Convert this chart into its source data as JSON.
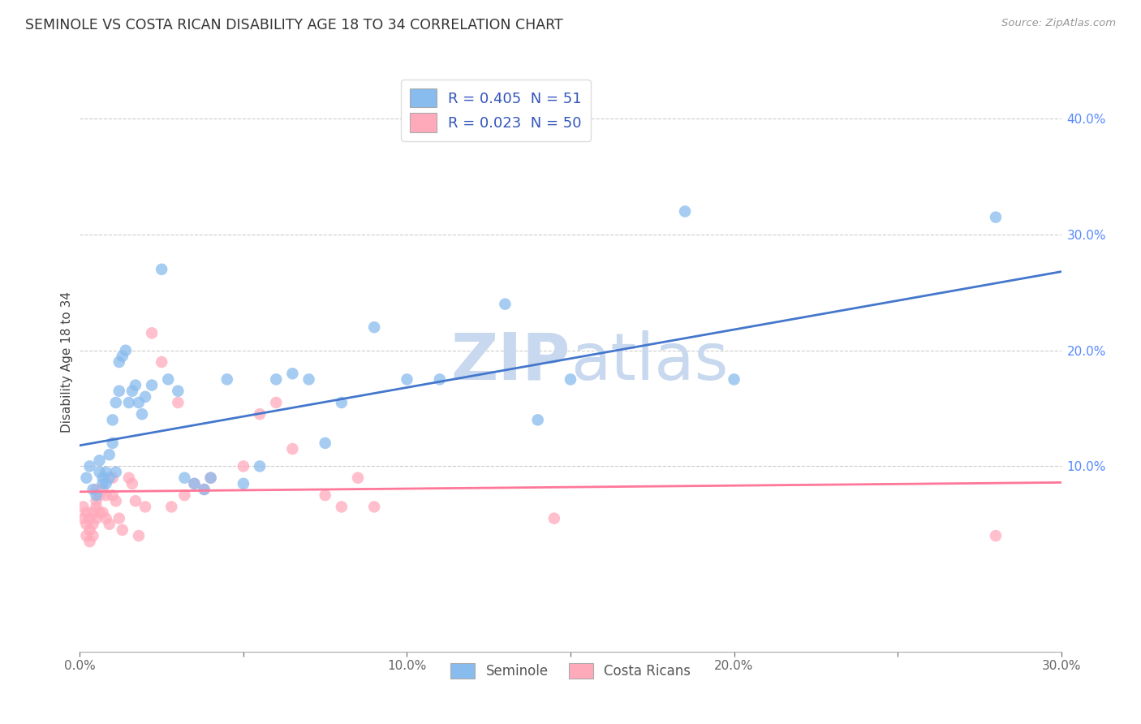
{
  "title": "SEMINOLE VS COSTA RICAN DISABILITY AGE 18 TO 34 CORRELATION CHART",
  "source": "Source: ZipAtlas.com",
  "ylabel": "Disability Age 18 to 34",
  "xmin": 0.0,
  "xmax": 0.3,
  "ymin": -0.06,
  "ymax": 0.44,
  "blue_R": 0.405,
  "blue_N": 51,
  "pink_R": 0.023,
  "pink_N": 50,
  "blue_color": "#88BBEE",
  "pink_color": "#FFAABB",
  "blue_line_color": "#4477CC",
  "pink_line_color": "#FF7799",
  "watermark_color": "#C8D8EE",
  "legend_label_blue": "Seminole",
  "legend_label_pink": "Costa Ricans",
  "blue_scatter_x": [
    0.002,
    0.003,
    0.004,
    0.005,
    0.006,
    0.006,
    0.007,
    0.007,
    0.008,
    0.008,
    0.009,
    0.009,
    0.01,
    0.01,
    0.011,
    0.011,
    0.012,
    0.012,
    0.013,
    0.014,
    0.015,
    0.016,
    0.017,
    0.018,
    0.019,
    0.02,
    0.022,
    0.025,
    0.027,
    0.03,
    0.032,
    0.035,
    0.038,
    0.04,
    0.045,
    0.05,
    0.055,
    0.06,
    0.065,
    0.07,
    0.075,
    0.08,
    0.09,
    0.1,
    0.11,
    0.13,
    0.14,
    0.15,
    0.185,
    0.2,
    0.28
  ],
  "blue_scatter_y": [
    0.09,
    0.1,
    0.08,
    0.075,
    0.095,
    0.105,
    0.09,
    0.085,
    0.095,
    0.085,
    0.11,
    0.09,
    0.14,
    0.12,
    0.095,
    0.155,
    0.165,
    0.19,
    0.195,
    0.2,
    0.155,
    0.165,
    0.17,
    0.155,
    0.145,
    0.16,
    0.17,
    0.27,
    0.175,
    0.165,
    0.09,
    0.085,
    0.08,
    0.09,
    0.175,
    0.085,
    0.1,
    0.175,
    0.18,
    0.175,
    0.12,
    0.155,
    0.22,
    0.175,
    0.175,
    0.24,
    0.14,
    0.175,
    0.32,
    0.175,
    0.315
  ],
  "pink_scatter_x": [
    0.001,
    0.001,
    0.002,
    0.002,
    0.002,
    0.003,
    0.003,
    0.003,
    0.004,
    0.004,
    0.004,
    0.005,
    0.005,
    0.005,
    0.005,
    0.006,
    0.006,
    0.007,
    0.007,
    0.008,
    0.008,
    0.009,
    0.01,
    0.01,
    0.011,
    0.012,
    0.013,
    0.015,
    0.016,
    0.017,
    0.018,
    0.02,
    0.022,
    0.025,
    0.028,
    0.03,
    0.032,
    0.035,
    0.038,
    0.04,
    0.05,
    0.055,
    0.06,
    0.065,
    0.075,
    0.08,
    0.085,
    0.09,
    0.145,
    0.28
  ],
  "pink_scatter_y": [
    0.065,
    0.055,
    0.06,
    0.05,
    0.04,
    0.055,
    0.045,
    0.035,
    0.06,
    0.05,
    0.04,
    0.08,
    0.07,
    0.065,
    0.055,
    0.075,
    0.06,
    0.08,
    0.06,
    0.075,
    0.055,
    0.05,
    0.09,
    0.075,
    0.07,
    0.055,
    0.045,
    0.09,
    0.085,
    0.07,
    0.04,
    0.065,
    0.215,
    0.19,
    0.065,
    0.155,
    0.075,
    0.085,
    0.08,
    0.09,
    0.1,
    0.145,
    0.155,
    0.115,
    0.075,
    0.065,
    0.09,
    0.065,
    0.055,
    0.04
  ],
  "blue_line_x": [
    0.0,
    0.3
  ],
  "blue_line_y": [
    0.118,
    0.268
  ],
  "pink_line_x": [
    0.0,
    0.3
  ],
  "pink_line_y": [
    0.078,
    0.086
  ],
  "ytick_vals": [
    0.0,
    0.1,
    0.2,
    0.3,
    0.4
  ],
  "xtick_vals": [
    0.0,
    0.05,
    0.1,
    0.15,
    0.2,
    0.25,
    0.3
  ],
  "xtick_labels": [
    "0.0%",
    "",
    "10.0%",
    "",
    "20.0%",
    "",
    "30.0%"
  ],
  "ytick_right_labels": [
    "",
    "10.0%",
    "20.0%",
    "30.0%",
    "40.0%"
  ]
}
